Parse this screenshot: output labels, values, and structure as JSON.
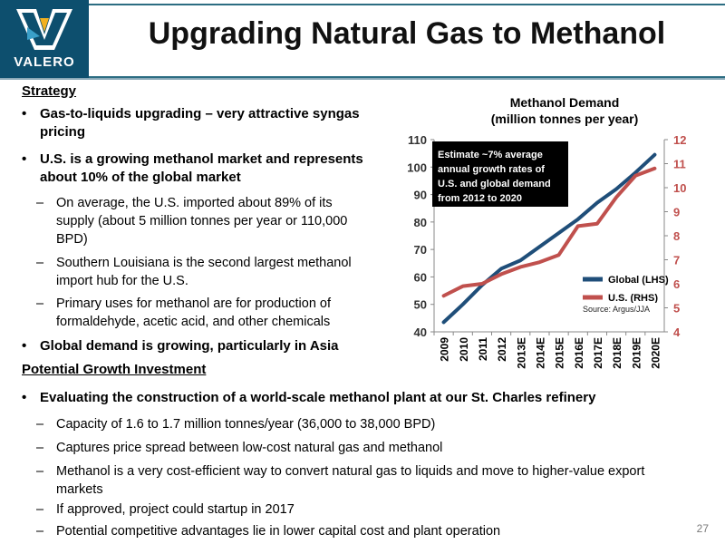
{
  "header": {
    "logo_text": "VALERO",
    "title": "Upgrading Natural Gas to Methanol"
  },
  "strategy": {
    "heading": "Strategy",
    "bullets": [
      "Gas-to-liquids upgrading – very attractive syngas pricing",
      "U.S. is a growing methanol market and represents about 10% of the global market"
    ],
    "subs": [
      "On average, the U.S. imported about 89% of its supply (about 5 million tonnes per year or 110,000 BPD)",
      "Southern Louisiana is the second largest methanol import hub for the U.S.",
      "Primary uses for methanol are for production of formaldehyde, acetic acid, and other chemicals"
    ],
    "bullet3": "Global demand is growing, particularly in Asia"
  },
  "growth": {
    "heading": "Potential Growth Investment",
    "bullet": "Evaluating the construction of a world-scale methanol plant at our St. Charles refinery",
    "subs": [
      "Capacity of 1.6 to 1.7 million tonnes/year (36,000 to 38,000 BPD)",
      "Captures price spread between low-cost natural gas and methanol",
      "Methanol is a very cost-efficient way to convert natural gas to liquids and move to higher-value export markets",
      "If approved, project could startup in 2017",
      "Potential competitive advantages lie in lower capital cost and plant operation"
    ]
  },
  "page_number": "27",
  "chart_data": {
    "type": "line",
    "title": "Methanol Demand",
    "subtitle": "(million tonnes per year)",
    "categories": [
      "2009",
      "2010",
      "2011",
      "2012",
      "2013E",
      "2014E",
      "2015E",
      "2016E",
      "2017E",
      "2018E",
      "2019E",
      "2020E"
    ],
    "series": [
      {
        "name": "Global (LHS)",
        "axis": "left",
        "color": "#1f4e79",
        "values": [
          43.5,
          50,
          57,
          63,
          66,
          71,
          76,
          81,
          87,
          92,
          98,
          104.5
        ]
      },
      {
        "name": "U.S. (RHS)",
        "axis": "right",
        "color": "#c0504d",
        "values": [
          5.5,
          5.9,
          6.0,
          6.4,
          6.7,
          6.9,
          7.2,
          8.4,
          8.5,
          9.6,
          10.5,
          10.8
        ]
      }
    ],
    "ylim_left": [
      40,
      110
    ],
    "ylim_right": [
      4,
      12
    ],
    "yticks_left": [
      "40",
      "50",
      "60",
      "70",
      "80",
      "90",
      "100",
      "110"
    ],
    "yticks_right": [
      "4",
      "5",
      "6",
      "7",
      "8",
      "9",
      "10",
      "11",
      "12"
    ],
    "annotation": "Estimate ~7% average annual growth rates of U.S. and global demand from 2012 to 2020",
    "source": "Source: Argus/JJA",
    "legend_position": "bottom-right",
    "grid": false
  }
}
